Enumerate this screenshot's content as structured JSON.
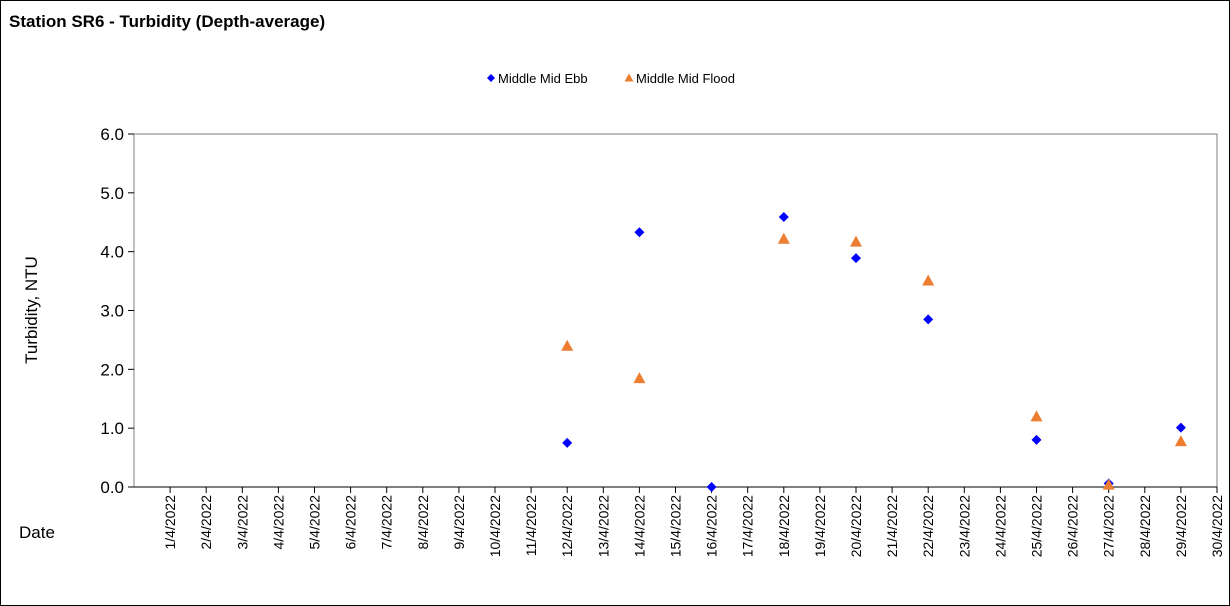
{
  "chart_data": {
    "type": "scatter",
    "title": "Station SR6 - Turbidity (Depth-average)",
    "xlabel": "Date",
    "ylabel": "Turbidity, NTU",
    "ylim": [
      0,
      6
    ],
    "yticks": [
      "0.0",
      "1.0",
      "2.0",
      "3.0",
      "4.0",
      "5.0",
      "6.0"
    ],
    "x_categories": [
      "1/4/2022",
      "2/4/2022",
      "3/4/2022",
      "4/4/2022",
      "5/4/2022",
      "6/4/2022",
      "7/4/2022",
      "8/4/2022",
      "9/4/2022",
      "10/4/2022",
      "11/4/2022",
      "12/4/2022",
      "13/4/2022",
      "14/4/2022",
      "15/4/2022",
      "16/4/2022",
      "17/4/2022",
      "18/4/2022",
      "19/4/2022",
      "20/4/2022",
      "21/4/2022",
      "22/4/2022",
      "23/4/2022",
      "24/4/2022",
      "25/4/2022",
      "26/4/2022",
      "27/4/2022",
      "28/4/2022",
      "29/4/2022",
      "30/4/2022"
    ],
    "grid": false,
    "legend_position": "top-center",
    "series": [
      {
        "name": "Middle Mid Ebb",
        "marker": "diamond",
        "color": "#0000FF",
        "points": [
          {
            "x": "12/4/2022",
            "y": 0.75
          },
          {
            "x": "14/4/2022",
            "y": 4.33
          },
          {
            "x": "16/4/2022",
            "y": 0.0
          },
          {
            "x": "18/4/2022",
            "y": 4.59
          },
          {
            "x": "20/4/2022",
            "y": 3.89
          },
          {
            "x": "22/4/2022",
            "y": 2.85
          },
          {
            "x": "25/4/2022",
            "y": 0.8
          },
          {
            "x": "27/4/2022",
            "y": 0.06
          },
          {
            "x": "29/4/2022",
            "y": 1.01
          }
        ]
      },
      {
        "name": "Middle Mid Flood",
        "marker": "triangle",
        "color": "#ED7D31",
        "points": [
          {
            "x": "12/4/2022",
            "y": 2.39
          },
          {
            "x": "14/4/2022",
            "y": 1.84
          },
          {
            "x": "18/4/2022",
            "y": 4.21
          },
          {
            "x": "20/4/2022",
            "y": 4.16
          },
          {
            "x": "22/4/2022",
            "y": 3.5
          },
          {
            "x": "25/4/2022",
            "y": 1.19
          },
          {
            "x": "27/4/2022",
            "y": 0.03
          },
          {
            "x": "29/4/2022",
            "y": 0.77
          }
        ]
      }
    ]
  }
}
